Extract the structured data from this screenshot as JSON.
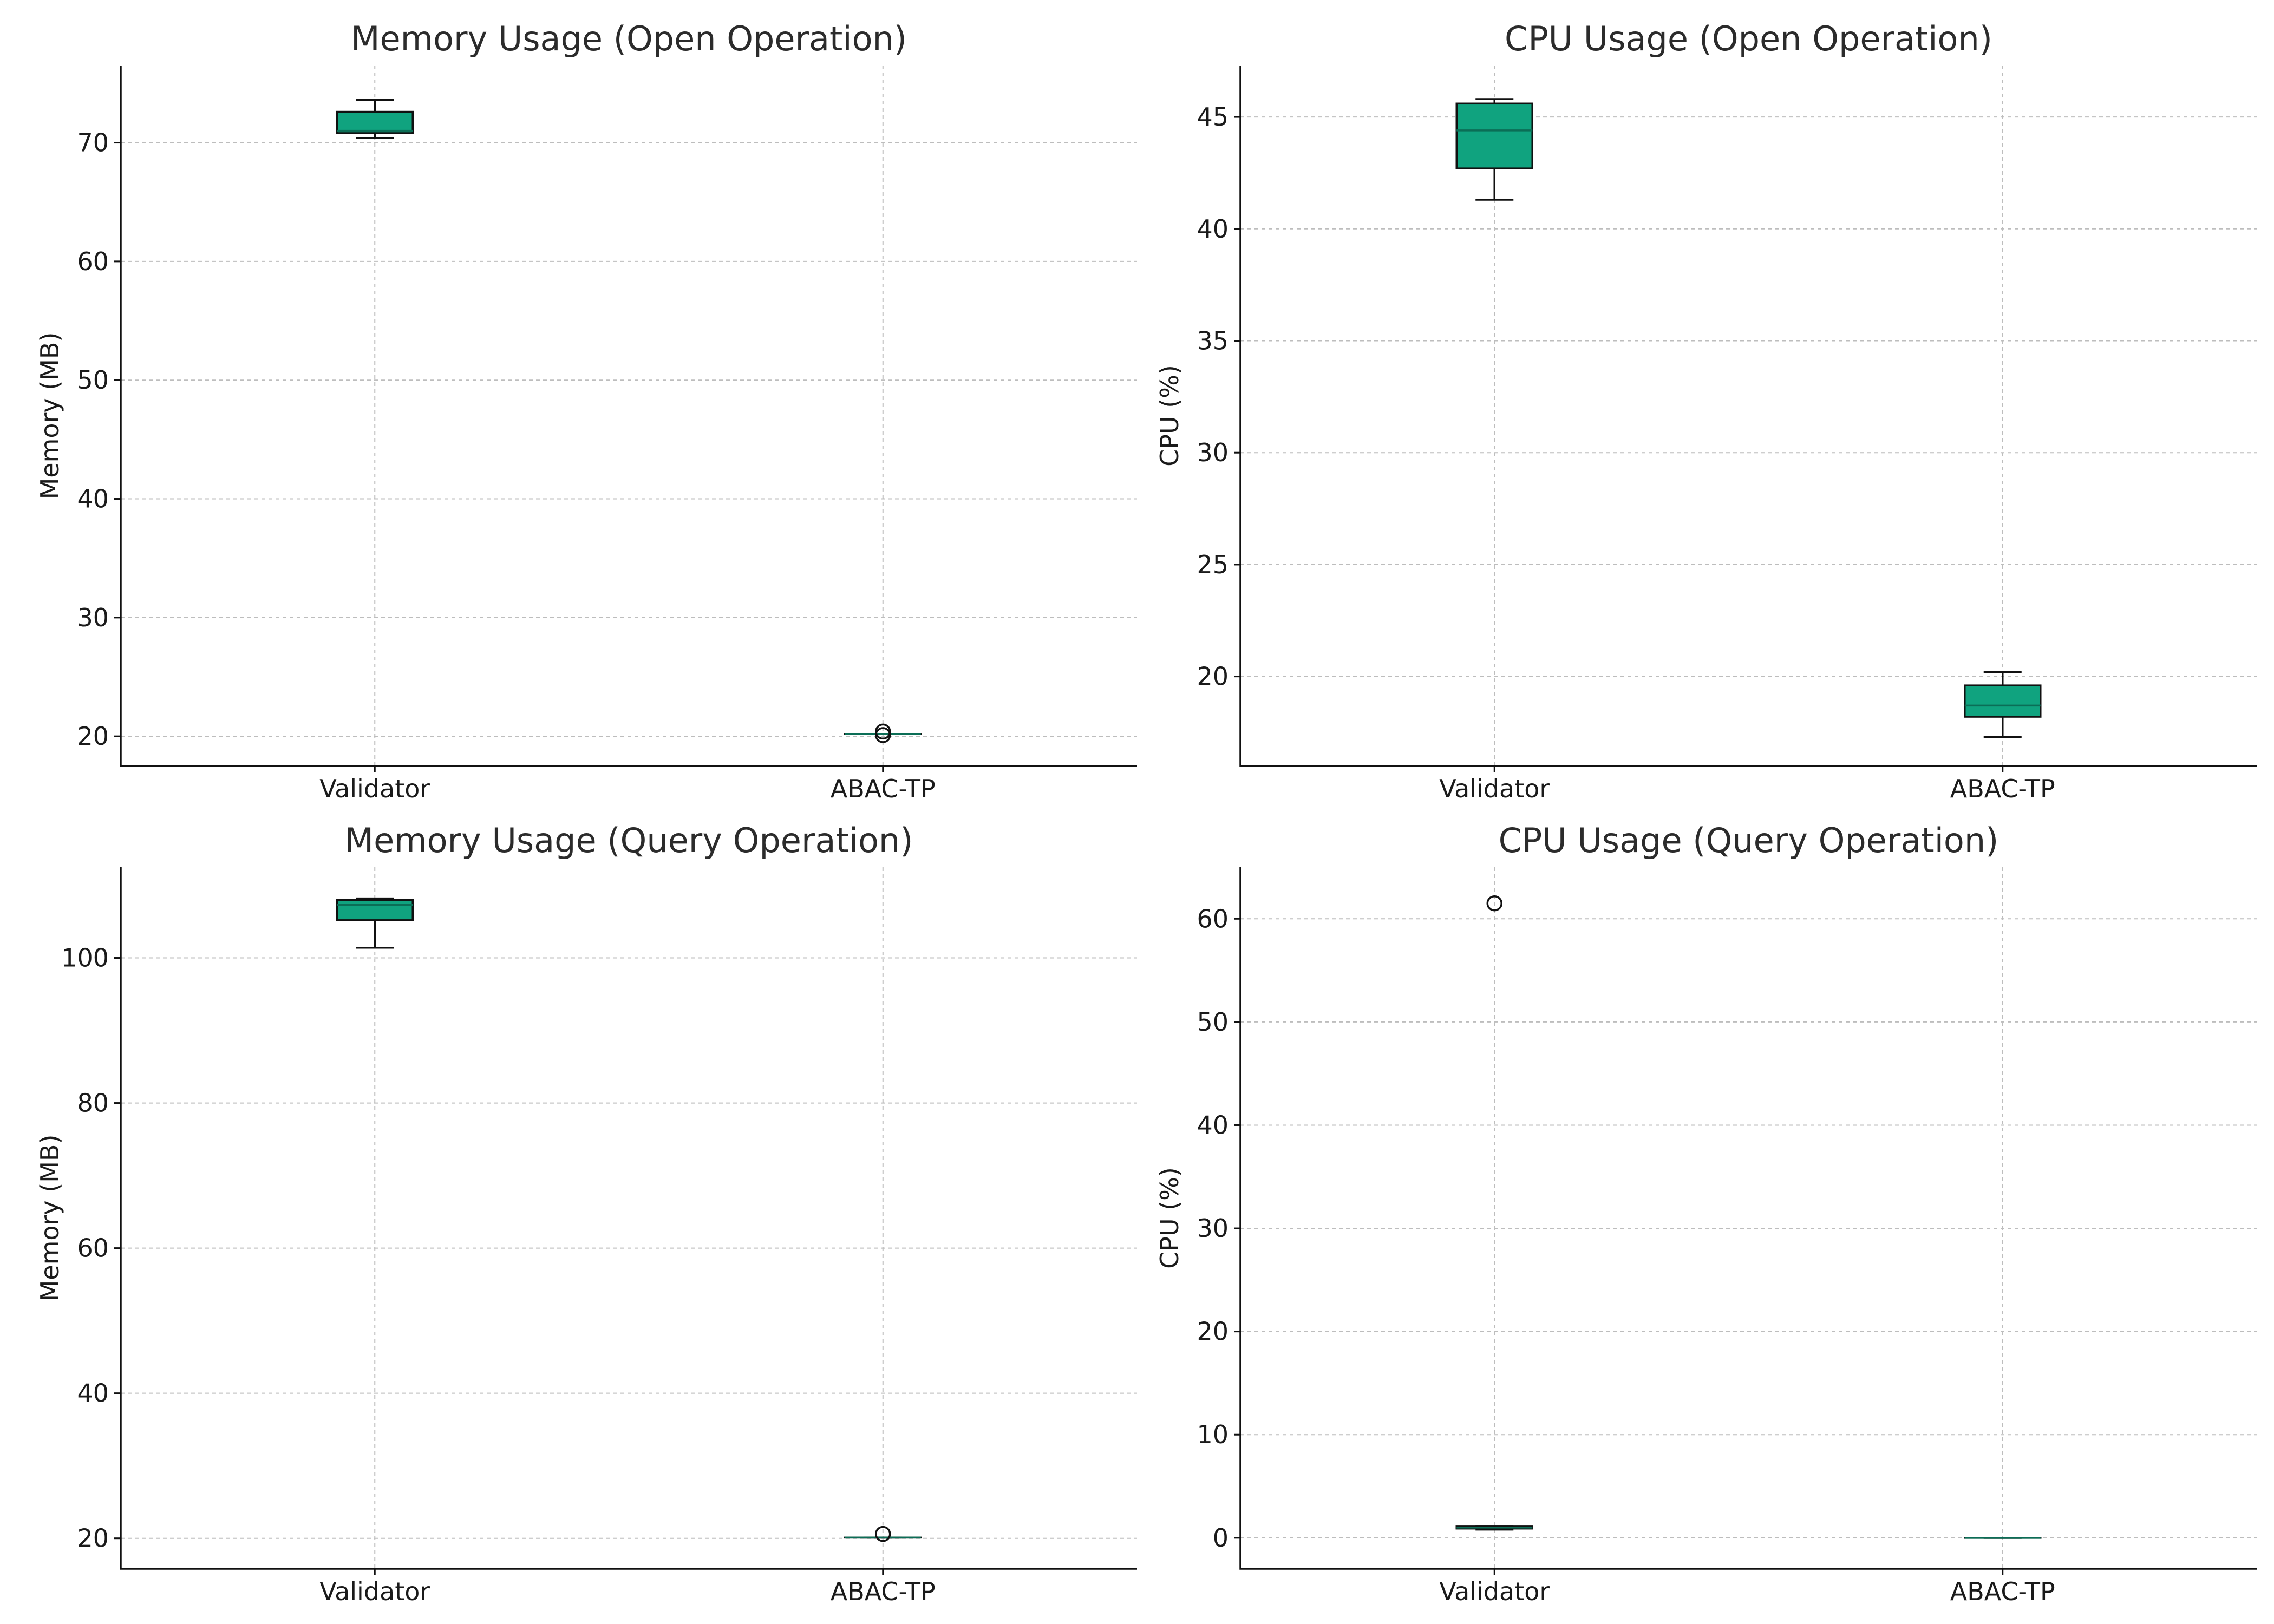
{
  "colors": {
    "box_fill": "#10a37f",
    "median": "#0b6e56",
    "grid": "#bdbdbd",
    "axis": "#111111"
  },
  "chart_data": [
    {
      "type": "boxplot",
      "title": "Memory Usage (Open Operation)",
      "xlabel": "",
      "ylabel": "Memory (MB)",
      "categories": [
        "Validator",
        "ABAC-TP"
      ],
      "ylim": [
        17.5,
        76.5
      ],
      "yticks": [
        20,
        30,
        40,
        50,
        60,
        70
      ],
      "grid": true,
      "boxes": [
        {
          "whislo": 70.4,
          "q1": 70.8,
          "med": 71.0,
          "q3": 72.6,
          "whishi": 73.6,
          "fliers": []
        },
        {
          "whislo": 20.2,
          "q1": 20.2,
          "med": 20.2,
          "q3": 20.2,
          "whishi": 20.2,
          "fliers": [
            20.1,
            20.4
          ]
        }
      ]
    },
    {
      "type": "boxplot",
      "title": "CPU Usage (Open Operation)",
      "xlabel": "",
      "ylabel": "CPU (%)",
      "categories": [
        "Validator",
        "ABAC-TP"
      ],
      "ylim": [
        16.0,
        47.3
      ],
      "yticks": [
        20,
        25,
        30,
        35,
        40,
        45
      ],
      "grid": true,
      "boxes": [
        {
          "whislo": 41.3,
          "q1": 42.7,
          "med": 44.4,
          "q3": 45.6,
          "whishi": 45.8,
          "fliers": []
        },
        {
          "whislo": 17.3,
          "q1": 18.2,
          "med": 18.7,
          "q3": 19.6,
          "whishi": 20.2,
          "fliers": []
        }
      ]
    },
    {
      "type": "boxplot",
      "title": "Memory Usage (Query Operation)",
      "xlabel": "",
      "ylabel": "Memory (MB)",
      "categories": [
        "Validator",
        "ABAC-TP"
      ],
      "ylim": [
        15.8,
        112.5
      ],
      "yticks": [
        20,
        40,
        60,
        80,
        100
      ],
      "grid": true,
      "boxes": [
        {
          "whislo": 101.4,
          "q1": 105.2,
          "med": 107.3,
          "q3": 108.0,
          "whishi": 108.2,
          "fliers": []
        },
        {
          "whislo": 20.1,
          "q1": 20.1,
          "med": 20.1,
          "q3": 20.1,
          "whishi": 20.1,
          "fliers": [
            20.6
          ]
        }
      ]
    },
    {
      "type": "boxplot",
      "title": "CPU Usage (Query Operation)",
      "xlabel": "",
      "ylabel": "CPU (%)",
      "categories": [
        "Validator",
        "ABAC-TP"
      ],
      "ylim": [
        -3.0,
        65.0
      ],
      "yticks": [
        0,
        10,
        20,
        30,
        40,
        50,
        60
      ],
      "grid": true,
      "boxes": [
        {
          "whislo": 0.8,
          "q1": 0.9,
          "med": 1.0,
          "q3": 1.1,
          "whishi": 1.1,
          "fliers": [
            61.5
          ]
        },
        {
          "whislo": 0.0,
          "q1": 0.0,
          "med": 0.0,
          "q3": 0.0,
          "whishi": 0.0,
          "fliers": []
        }
      ]
    }
  ]
}
